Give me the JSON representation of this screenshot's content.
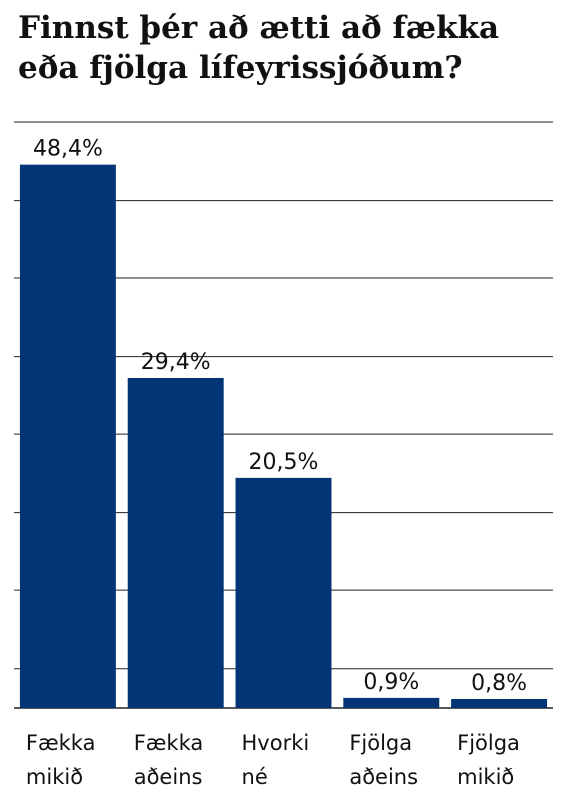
{
  "chart_data": {
    "type": "bar",
    "title": "Finnst þér að ætti að fækka eða fjölga lífeyrissjóðum?",
    "categories": [
      "Fækka mikið",
      "Fækka aðeins",
      "Hvorki né",
      "Fjölga aðeins",
      "Fjölga mikið"
    ],
    "values": [
      48.4,
      29.4,
      20.5,
      0.9,
      0.8
    ],
    "value_labels": [
      "48,4%",
      "29,4%",
      "20,5%",
      "0,9%",
      "0,8%"
    ],
    "color": "#023476",
    "ylim": [
      0,
      52.2
    ],
    "yticks": [
      3.5,
      10.5,
      17.4,
      24.4,
      31.3,
      38.3,
      45.2,
      52.2
    ],
    "grid": true
  }
}
